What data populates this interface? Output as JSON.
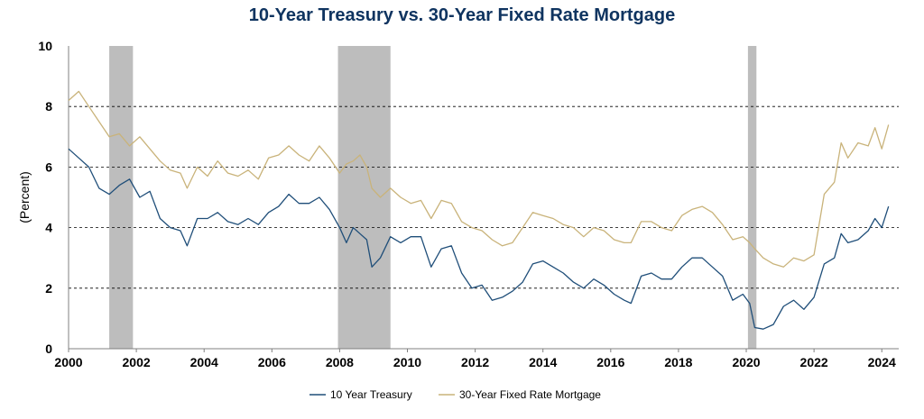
{
  "chart_data": {
    "type": "line",
    "title": "10-Year Treasury vs. 30-Year Fixed Rate Mortgage",
    "ylabel": "(Percent)",
    "xlabel": "",
    "xlim": [
      2000,
      2024.5
    ],
    "ylim": [
      0,
      10
    ],
    "x_ticks": [
      "2000",
      "2002",
      "2004",
      "2006",
      "2008",
      "2010",
      "2012",
      "2014",
      "2016",
      "2018",
      "2020",
      "2022",
      "2024"
    ],
    "y_ticks": [
      "0",
      "2",
      "4",
      "6",
      "8",
      "10"
    ],
    "y_gridlines": [
      2,
      4,
      6,
      8
    ],
    "recessions": [
      [
        2001.2,
        2001.9
      ],
      [
        2007.95,
        2009.5
      ],
      [
        2020.05,
        2020.3
      ]
    ],
    "legend_position": "bottom-center",
    "series": [
      {
        "name": "10 Year Treasury",
        "color": "#1f4e79",
        "x": [
          2000.0,
          2000.3,
          2000.6,
          2000.9,
          2001.2,
          2001.5,
          2001.8,
          2002.1,
          2002.4,
          2002.7,
          2003.0,
          2003.3,
          2003.5,
          2003.8,
          2004.1,
          2004.4,
          2004.7,
          2005.0,
          2005.3,
          2005.6,
          2005.9,
          2006.2,
          2006.5,
          2006.8,
          2007.1,
          2007.4,
          2007.7,
          2008.0,
          2008.2,
          2008.4,
          2008.6,
          2008.8,
          2008.95,
          2009.2,
          2009.5,
          2009.8,
          2010.1,
          2010.4,
          2010.7,
          2011.0,
          2011.3,
          2011.6,
          2011.9,
          2012.2,
          2012.5,
          2012.8,
          2013.1,
          2013.4,
          2013.7,
          2014.0,
          2014.3,
          2014.6,
          2014.9,
          2015.2,
          2015.5,
          2015.8,
          2016.1,
          2016.4,
          2016.6,
          2016.9,
          2017.2,
          2017.5,
          2017.8,
          2018.1,
          2018.4,
          2018.7,
          2019.0,
          2019.3,
          2019.6,
          2019.9,
          2020.1,
          2020.25,
          2020.5,
          2020.8,
          2021.1,
          2021.4,
          2021.7,
          2022.0,
          2022.3,
          2022.6,
          2022.8,
          2023.0,
          2023.3,
          2023.6,
          2023.8,
          2024.0,
          2024.2
        ],
        "values": [
          6.6,
          6.3,
          6.0,
          5.3,
          5.1,
          5.4,
          5.6,
          5.0,
          5.2,
          4.3,
          4.0,
          3.9,
          3.4,
          4.3,
          4.3,
          4.5,
          4.2,
          4.1,
          4.3,
          4.1,
          4.5,
          4.7,
          5.1,
          4.8,
          4.8,
          5.0,
          4.6,
          4.0,
          3.5,
          4.0,
          3.8,
          3.6,
          2.7,
          3.0,
          3.7,
          3.5,
          3.7,
          3.7,
          2.7,
          3.3,
          3.4,
          2.5,
          2.0,
          2.1,
          1.6,
          1.7,
          1.9,
          2.2,
          2.8,
          2.9,
          2.7,
          2.5,
          2.2,
          2.0,
          2.3,
          2.1,
          1.8,
          1.6,
          1.5,
          2.4,
          2.5,
          2.3,
          2.3,
          2.7,
          3.0,
          3.0,
          2.7,
          2.4,
          1.6,
          1.8,
          1.5,
          0.7,
          0.65,
          0.8,
          1.4,
          1.6,
          1.3,
          1.7,
          2.8,
          3.0,
          3.8,
          3.5,
          3.6,
          3.9,
          4.3,
          4.0,
          4.7
        ]
      },
      {
        "name": "30-Year Fixed Rate Mortgage",
        "color": "#c9b37a",
        "x": [
          2000.0,
          2000.3,
          2000.6,
          2000.9,
          2001.2,
          2001.5,
          2001.8,
          2002.1,
          2002.4,
          2002.7,
          2003.0,
          2003.3,
          2003.5,
          2003.8,
          2004.1,
          2004.4,
          2004.7,
          2005.0,
          2005.3,
          2005.6,
          2005.9,
          2006.2,
          2006.5,
          2006.8,
          2007.1,
          2007.4,
          2007.7,
          2008.0,
          2008.2,
          2008.4,
          2008.6,
          2008.8,
          2008.95,
          2009.2,
          2009.5,
          2009.8,
          2010.1,
          2010.4,
          2010.7,
          2011.0,
          2011.3,
          2011.6,
          2011.9,
          2012.2,
          2012.5,
          2012.8,
          2013.1,
          2013.4,
          2013.7,
          2014.0,
          2014.3,
          2014.6,
          2014.9,
          2015.2,
          2015.5,
          2015.8,
          2016.1,
          2016.4,
          2016.6,
          2016.9,
          2017.2,
          2017.5,
          2017.8,
          2018.1,
          2018.4,
          2018.7,
          2019.0,
          2019.3,
          2019.6,
          2019.9,
          2020.1,
          2020.25,
          2020.5,
          2020.8,
          2021.1,
          2021.4,
          2021.7,
          2022.0,
          2022.3,
          2022.6,
          2022.8,
          2023.0,
          2023.3,
          2023.6,
          2023.8,
          2024.0,
          2024.2
        ],
        "values": [
          8.2,
          8.5,
          8.0,
          7.5,
          7.0,
          7.1,
          6.7,
          7.0,
          6.6,
          6.2,
          5.9,
          5.8,
          5.3,
          6.0,
          5.7,
          6.2,
          5.8,
          5.7,
          5.9,
          5.6,
          6.3,
          6.4,
          6.7,
          6.4,
          6.2,
          6.7,
          6.3,
          5.8,
          6.1,
          6.2,
          6.4,
          6.0,
          5.3,
          5.0,
          5.3,
          5.0,
          4.8,
          4.9,
          4.3,
          4.9,
          4.8,
          4.2,
          4.0,
          3.9,
          3.6,
          3.4,
          3.5,
          4.0,
          4.5,
          4.4,
          4.3,
          4.1,
          4.0,
          3.7,
          4.0,
          3.9,
          3.6,
          3.5,
          3.5,
          4.2,
          4.2,
          4.0,
          3.9,
          4.4,
          4.6,
          4.7,
          4.5,
          4.1,
          3.6,
          3.7,
          3.5,
          3.3,
          3.0,
          2.8,
          2.7,
          3.0,
          2.9,
          3.1,
          5.1,
          5.5,
          6.8,
          6.3,
          6.8,
          6.7,
          7.3,
          6.6,
          7.4
        ]
      }
    ]
  }
}
